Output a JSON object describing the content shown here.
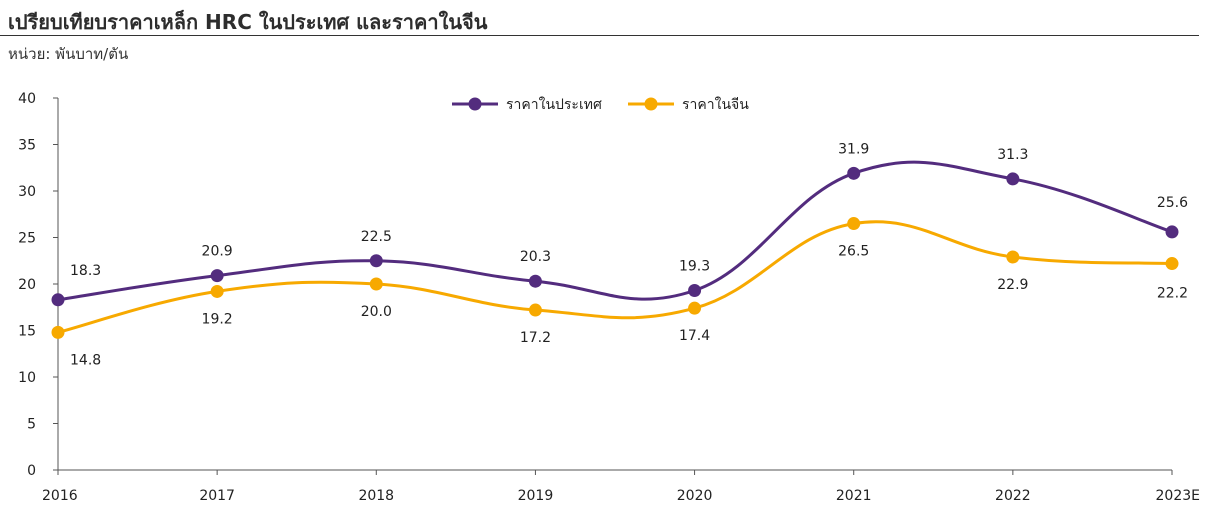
{
  "header": {
    "title": "เปรียบเทียบราคาเหล็ก HRC ในประเทศ และราคาในจีน",
    "unit": "หน่วย: พันบาท/ตัน"
  },
  "colors": {
    "series_domestic": "#532c7e",
    "series_china": "#f7a900",
    "axis": "#555555"
  },
  "chart_data": {
    "type": "line",
    "categories": [
      "2016",
      "2017",
      "2018",
      "2019",
      "2020",
      "2021",
      "2022",
      "2023E"
    ],
    "series": [
      {
        "name": "ราคาในประเทศ",
        "values": [
          18.3,
          20.9,
          22.5,
          20.3,
          19.3,
          31.9,
          31.3,
          25.6
        ],
        "labels": [
          "18.3",
          "20.9",
          "22.5",
          "20.3",
          "19.3",
          "31.9",
          "31.3",
          "25.6"
        ]
      },
      {
        "name": "ราคาในจีน",
        "values": [
          14.8,
          19.2,
          20.0,
          17.2,
          17.4,
          26.5,
          22.9,
          22.2
        ],
        "labels": [
          "14.8",
          "19.2",
          "20.0",
          "17.2",
          "17.4",
          "26.5",
          "22.9",
          "22.2"
        ]
      }
    ],
    "ylim": [
      0,
      40
    ],
    "yticks": [
      "0",
      "5",
      "10",
      "15",
      "20",
      "25",
      "30",
      "35",
      "40"
    ],
    "ytick_values": [
      0,
      5,
      10,
      15,
      20,
      25,
      30,
      35,
      40
    ],
    "legend_position": "top-center",
    "grid": false
  }
}
